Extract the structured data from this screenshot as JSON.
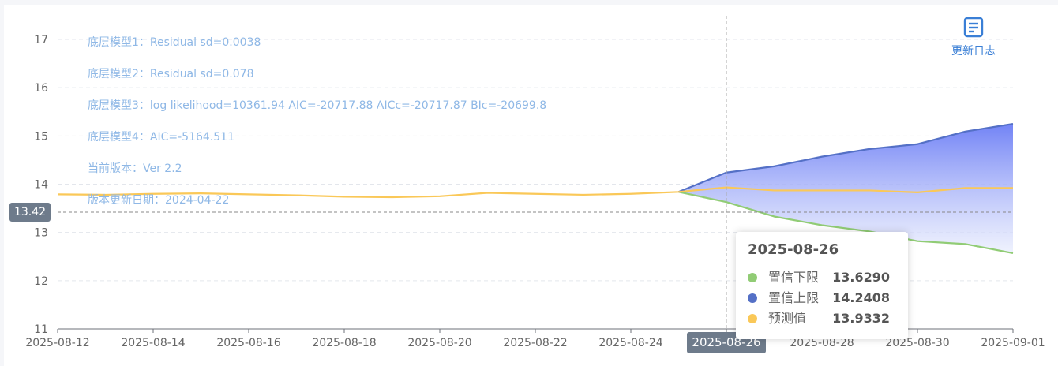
{
  "chart_data": {
    "type": "area",
    "x": [
      "2025-08-12",
      "2025-08-13",
      "2025-08-14",
      "2025-08-15",
      "2025-08-16",
      "2025-08-17",
      "2025-08-18",
      "2025-08-19",
      "2025-08-20",
      "2025-08-21",
      "2025-08-22",
      "2025-08-23",
      "2025-08-24",
      "2025-08-25",
      "2025-08-26",
      "2025-08-27",
      "2025-08-28",
      "2025-08-29",
      "2025-08-30",
      "2025-08-31",
      "2025-09-01"
    ],
    "x_tick_labels": [
      "2025-08-12",
      "2025-08-14",
      "2025-08-16",
      "2025-08-18",
      "2025-08-20",
      "2025-08-22",
      "2025-08-24",
      "2025-08-26",
      "2025-08-28",
      "2025-08-30",
      "2025-09-01"
    ],
    "y_ticks": [
      11,
      12,
      13,
      14,
      15,
      16,
      17
    ],
    "ylim": [
      11,
      17
    ],
    "grid": true,
    "series": [
      {
        "name": "置信下限",
        "color": "#91cc75",
        "values": [
          null,
          null,
          null,
          null,
          null,
          null,
          null,
          null,
          null,
          null,
          null,
          null,
          null,
          13.84,
          13.629,
          13.33,
          13.15,
          13.02,
          12.82,
          12.76,
          12.57
        ]
      },
      {
        "name": "置信上限",
        "color": "#5470c6",
        "values": [
          null,
          null,
          null,
          null,
          null,
          null,
          null,
          null,
          null,
          null,
          null,
          null,
          null,
          13.84,
          14.2408,
          14.37,
          14.57,
          14.73,
          14.83,
          15.09,
          15.25
        ]
      },
      {
        "name": "预测值",
        "color": "#fac858",
        "values": [
          13.79,
          13.78,
          13.8,
          13.81,
          13.79,
          13.77,
          13.74,
          13.73,
          13.75,
          13.82,
          13.8,
          13.78,
          13.8,
          13.84,
          13.9332,
          13.87,
          13.87,
          13.87,
          13.83,
          13.92,
          13.92
        ]
      }
    ],
    "annotations": [
      "底层模型1：Residual sd=0.0038",
      "底层模型2：Residual sd=0.078",
      "底层模型3：log likelihood=10361.94 AIC=-20717.88 AICc=-20717.87 BIc=-20699.8",
      "底层模型4：AIC=-5164.511",
      "当前版本：Ver 2.2",
      "版本更新日期：2024-04-22"
    ],
    "crosshair": {
      "x": "2025-08-26",
      "y": 13.42,
      "x_label": "2025-08-26",
      "y_label": "13.42"
    },
    "tooltip": {
      "title": "2025-08-26",
      "rows": [
        {
          "name": "置信下限",
          "value": "13.6290",
          "color": "#91cc75"
        },
        {
          "name": "置信上限",
          "value": "14.2408",
          "color": "#5470c6"
        },
        {
          "name": "预测值",
          "value": "13.9332",
          "color": "#fac858"
        }
      ]
    }
  },
  "toolbar": {
    "changelog_label": "更新日志",
    "changelog_icon": "document-icon"
  }
}
